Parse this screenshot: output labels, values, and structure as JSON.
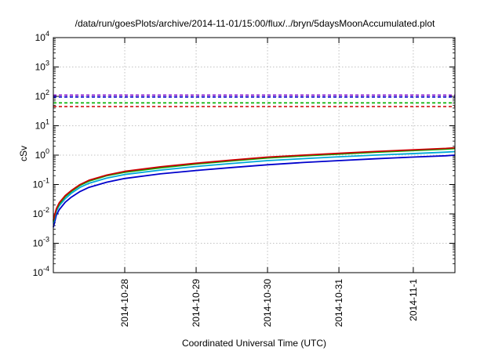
{
  "chart_data": {
    "type": "line",
    "title": "/data/run/goesPlots/archive/2014-11-01/15:00/flux/../bryn/5daysMoonAccumulated.plot",
    "xlabel": "Coordinated Universal Time (UTC)",
    "ylabel": "cSv",
    "y_scale": "log",
    "ylim": [
      0.0001,
      10000
    ],
    "y_ticks": [
      {
        "base": "10",
        "exp": "-4"
      },
      {
        "base": "10",
        "exp": "-3"
      },
      {
        "base": "10",
        "exp": "-2"
      },
      {
        "base": "10",
        "exp": "-1"
      },
      {
        "base": "10",
        "exp": "0"
      },
      {
        "base": "10",
        "exp": "1"
      },
      {
        "base": "10",
        "exp": "2"
      },
      {
        "base": "10",
        "exp": "3"
      },
      {
        "base": "10",
        "exp": "4"
      }
    ],
    "xlim": [
      "2014-10-27T00:00",
      "2014-11-01T15:00"
    ],
    "x_ticks": [
      "2014-10-28",
      "2014-10-29",
      "2014-10-30",
      "2014-10-31",
      "2014-11-1"
    ],
    "grid": true,
    "legend": "none",
    "series": [
      {
        "color": "#cc0000",
        "x": [
          "2014-10-27T00:00",
          "2014-10-27T01:00",
          "2014-10-27T02:00",
          "2014-10-27T04:00",
          "2014-10-27T06:00",
          "2014-10-27T09:00",
          "2014-10-27T12:00",
          "2014-10-27T18:00",
          "2014-10-28T00:00",
          "2014-10-28T12:00",
          "2014-10-29T00:00",
          "2014-10-29T12:00",
          "2014-10-30T00:00",
          "2014-10-30T12:00",
          "2014-10-31T00:00",
          "2014-10-31T12:00",
          "2014-11-01T00:00",
          "2014-11-01T12:00",
          "2014-11-01T15:00"
        ],
        "values": [
          0.006,
          0.015,
          0.024,
          0.042,
          0.062,
          0.1,
          0.14,
          0.21,
          0.28,
          0.4,
          0.53,
          0.68,
          0.86,
          1.0,
          1.15,
          1.33,
          1.5,
          1.7,
          1.78
        ]
      },
      {
        "color": "#00b000",
        "x": [
          "2014-10-27T00:00",
          "2014-10-27T01:00",
          "2014-10-27T02:00",
          "2014-10-27T04:00",
          "2014-10-27T06:00",
          "2014-10-27T09:00",
          "2014-10-27T12:00",
          "2014-10-27T18:00",
          "2014-10-28T00:00",
          "2014-10-28T12:00",
          "2014-10-29T00:00",
          "2014-10-29T12:00",
          "2014-10-30T00:00",
          "2014-10-30T12:00",
          "2014-10-31T00:00",
          "2014-10-31T12:00",
          "2014-11-01T00:00",
          "2014-11-01T12:00",
          "2014-11-01T15:00"
        ],
        "values": [
          0.0055,
          0.014,
          0.022,
          0.039,
          0.058,
          0.094,
          0.13,
          0.2,
          0.26,
          0.37,
          0.5,
          0.64,
          0.8,
          0.94,
          1.08,
          1.25,
          1.42,
          1.6,
          1.68
        ]
      },
      {
        "color": "#00a8d8",
        "x": [
          "2014-10-27T00:00",
          "2014-10-27T01:00",
          "2014-10-27T02:00",
          "2014-10-27T04:00",
          "2014-10-27T06:00",
          "2014-10-27T09:00",
          "2014-10-27T12:00",
          "2014-10-27T18:00",
          "2014-10-28T00:00",
          "2014-10-28T12:00",
          "2014-10-29T00:00",
          "2014-10-29T12:00",
          "2014-10-30T00:00",
          "2014-10-30T12:00",
          "2014-10-31T00:00",
          "2014-10-31T12:00",
          "2014-11-01T00:00",
          "2014-11-01T12:00",
          "2014-11-01T15:00"
        ],
        "values": [
          0.0048,
          0.012,
          0.019,
          0.033,
          0.05,
          0.08,
          0.11,
          0.165,
          0.22,
          0.31,
          0.41,
          0.52,
          0.65,
          0.76,
          0.88,
          1.0,
          1.12,
          1.26,
          1.32
        ]
      },
      {
        "color": "#0000cc",
        "x": [
          "2014-10-27T00:00",
          "2014-10-27T01:00",
          "2014-10-27T02:00",
          "2014-10-27T04:00",
          "2014-10-27T06:00",
          "2014-10-27T09:00",
          "2014-10-27T12:00",
          "2014-10-27T18:00",
          "2014-10-28T00:00",
          "2014-10-28T12:00",
          "2014-10-29T00:00",
          "2014-10-29T12:00",
          "2014-10-30T00:00",
          "2014-10-30T12:00",
          "2014-10-31T00:00",
          "2014-10-31T12:00",
          "2014-11-01T00:00",
          "2014-11-01T12:00",
          "2014-11-01T15:00"
        ],
        "values": [
          0.0035,
          0.009,
          0.014,
          0.025,
          0.037,
          0.058,
          0.08,
          0.12,
          0.16,
          0.23,
          0.3,
          0.38,
          0.47,
          0.56,
          0.65,
          0.75,
          0.85,
          0.95,
          1.0
        ]
      }
    ],
    "reference_lines": [
      {
        "color": "#7a00cc",
        "style": "dashed",
        "value": 110
      },
      {
        "color": "#0000cc",
        "style": "dashed",
        "value": 95
      },
      {
        "color": "#00b000",
        "style": "dashed",
        "value": 60
      },
      {
        "color": "#cc0000",
        "style": "dashed",
        "value": 45
      }
    ]
  }
}
